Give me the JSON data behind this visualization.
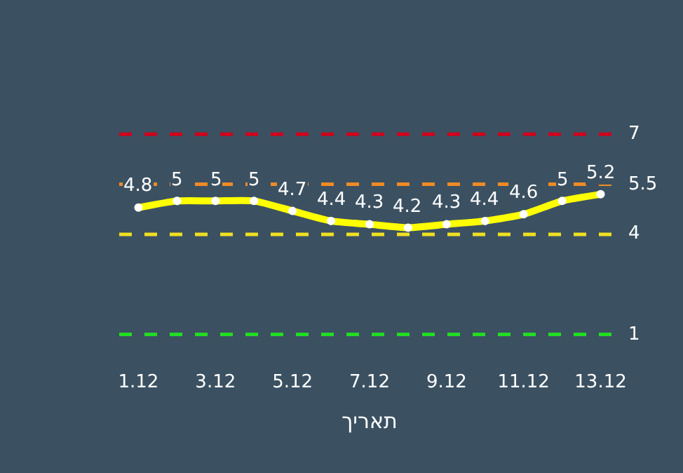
{
  "chart_data": {
    "type": "line",
    "xlabel": "תאריך",
    "categories": [
      "1.12",
      null,
      "3.12",
      null,
      "5.12",
      null,
      "7.12",
      null,
      "9.12",
      null,
      "11.12",
      null,
      "13.12"
    ],
    "series": [
      {
        "color": "#ffff00",
        "values": [
          4.8,
          5,
          5,
          5,
          4.7,
          4.4,
          4.3,
          4.2,
          4.3,
          4.4,
          4.6,
          5,
          5.2
        ]
      }
    ],
    "data_labels": true,
    "marker": "circle",
    "line_style": "solid",
    "tick_labels": "x",
    "ref_lines": [
      {
        "axis": "y",
        "value": 7,
        "label": "7",
        "color": "#d0021b",
        "line_style": "dashed"
      },
      {
        "axis": "y",
        "value": 5.5,
        "label": "5.5",
        "color": "#f08a24",
        "line_style": "dashed"
      },
      {
        "axis": "y",
        "value": 4,
        "label": "4",
        "color": "#f0e020",
        "line_style": "dashed"
      },
      {
        "axis": "y",
        "value": 1,
        "label": "1",
        "color": "#22dd22",
        "line_style": "dashed"
      }
    ]
  }
}
